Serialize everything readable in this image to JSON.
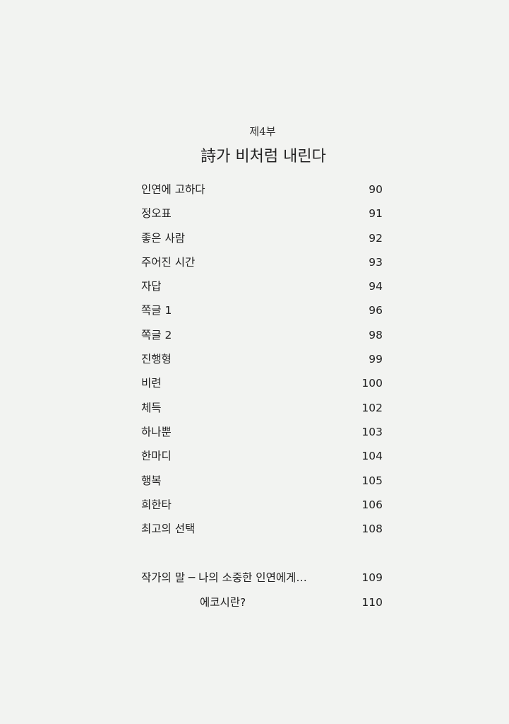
{
  "part_label": "제4부",
  "part_title": "詩가 비처럼 내린다",
  "entries": [
    {
      "title": "인연에 고하다",
      "page": "90"
    },
    {
      "title": "정오표",
      "page": "91"
    },
    {
      "title": "좋은 사람",
      "page": "92"
    },
    {
      "title": "주어진 시간",
      "page": "93"
    },
    {
      "title": "자답",
      "page": "94"
    },
    {
      "title": "쪽글 1",
      "page": "96"
    },
    {
      "title": "쪽글 2",
      "page": "98"
    },
    {
      "title": "진행형",
      "page": "99"
    },
    {
      "title": "비련",
      "page": "100"
    },
    {
      "title": "체득",
      "page": "102"
    },
    {
      "title": "하나뿐",
      "page": "103"
    },
    {
      "title": "한마디",
      "page": "104"
    },
    {
      "title": "행복",
      "page": "105"
    },
    {
      "title": "희한타",
      "page": "106"
    },
    {
      "title": "최고의 선택",
      "page": "108"
    }
  ],
  "afterword": {
    "title": "작가의 말 ─ 나의 소중한 인연에게…",
    "page": "109"
  },
  "eco": {
    "title": "에코시란?",
    "page": "110"
  }
}
